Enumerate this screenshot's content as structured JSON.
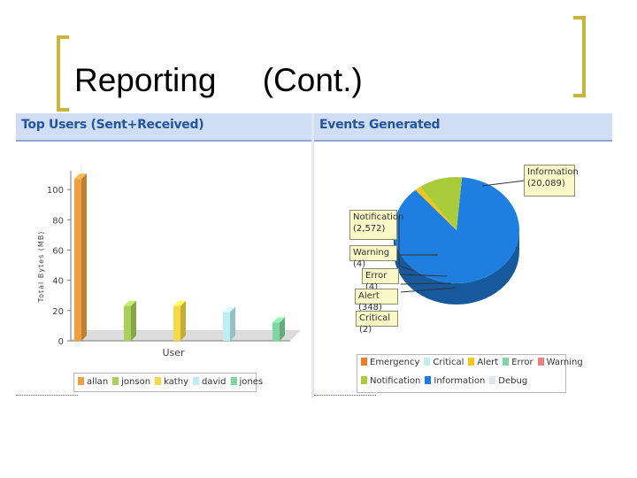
{
  "slide": {
    "title": "Reporting",
    "subtitle": "(Cont.)"
  },
  "colors": {
    "bracket": "#c9b53a",
    "header_bg": "#cfdef4",
    "header_text": "#24559f"
  },
  "users_panel": {
    "title": "Top Users (Sent+Received)",
    "legend": [
      "allan",
      "jonson",
      "kathy",
      "david",
      "jones"
    ]
  },
  "events_panel": {
    "title": "Events Generated",
    "callouts": {
      "information": "Information (20,089)",
      "notification": "Notification (2,572)",
      "warning": "Warning (4)",
      "error": "Error (4)",
      "alert": "Alert (348)",
      "critical": "Critical (2)"
    },
    "legend_row1": [
      "Emergency",
      "Critical",
      "Alert",
      "Error",
      "Warning"
    ],
    "legend_row2": [
      "Notification",
      "Information",
      "Debug"
    ]
  },
  "chart_data": [
    {
      "type": "bar",
      "title": "Top Users (Sent+Received)",
      "xlabel": "User",
      "ylabel": "Total Bytes (MB)",
      "categories": [
        "allan",
        "jonson",
        "kathy",
        "david",
        "jones"
      ],
      "values": [
        107,
        23,
        23,
        19,
        12
      ],
      "ylim": [
        0,
        110
      ],
      "yticks": [
        0,
        20,
        40,
        60,
        80,
        100
      ],
      "colors": [
        "#f0a040",
        "#a8d05a",
        "#f5d94a",
        "#bdeef3",
        "#7fd6a0"
      ],
      "legend": "bottom"
    },
    {
      "type": "pie",
      "title": "Events Generated",
      "categories": [
        "Emergency",
        "Critical",
        "Alert",
        "Error",
        "Warning",
        "Notification",
        "Information",
        "Debug"
      ],
      "values": [
        0,
        2,
        348,
        4,
        4,
        2572,
        20089,
        0
      ],
      "colors": [
        "#f07d2a",
        "#bdeef3",
        "#f5c518",
        "#7fd6a0",
        "#f08080",
        "#a8cc3a",
        "#1f7fe0",
        "#e0e6ee"
      ],
      "legend": "bottom"
    }
  ]
}
